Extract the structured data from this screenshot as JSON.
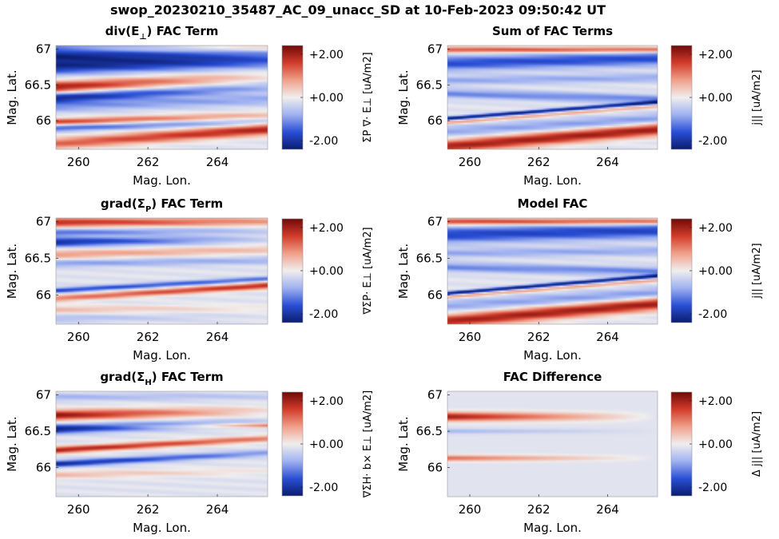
{
  "figure": {
    "title": "swop_20230210_35487_AC_09_unacc_SD at 10-Feb-2023 09:50:42 UT"
  },
  "colormap": {
    "name": "seismic-like diverging (blue-white-red)",
    "stops": [
      "#0b1c6e",
      "#2a4fd6",
      "#9fb1f0",
      "#f0eeee",
      "#f0a08a",
      "#d23b2b",
      "#6e0a08"
    ]
  },
  "chart_data": [
    {
      "id": "div_e",
      "type": "heatmap",
      "title": "div(E⊥) FAC Term",
      "title_parts": {
        "pre": "div(E",
        "sub": "⊥",
        "post": ") FAC Term"
      },
      "xlabel": "Mag. Lon.",
      "ylabel": "Mag. Lat.",
      "xlim": [
        259.35,
        265.45
      ],
      "ylim": [
        65.6,
        67.05
      ],
      "xticks": [
        "260",
        "262",
        "264"
      ],
      "yticks": [
        "67",
        "66.5",
        "66"
      ],
      "colorbar": {
        "ticks": [
          "+2.00",
          "+0.00",
          "-2.00"
        ],
        "range": [
          -2.4,
          2.4
        ],
        "label": "ΣP ∇· E⊥ [uA/m2]"
      },
      "bands": [
        {
          "lat0": 66.93,
          "lat1": 66.9,
          "w": 0.14,
          "v0": -2.2,
          "v1": -0.9
        },
        {
          "lat0": 66.74,
          "lat1": 66.82,
          "w": 0.1,
          "v0": -1.6,
          "v1": -0.7
        },
        {
          "lat0": 66.47,
          "lat1": 66.62,
          "w": 0.08,
          "v0": 2.2,
          "v1": 0.3
        },
        {
          "lat0": 66.32,
          "lat1": 66.46,
          "w": 0.07,
          "v0": -2.0,
          "v1": -0.6
        },
        {
          "lat0": 66.2,
          "lat1": 66.3,
          "w": 0.08,
          "v0": -0.9,
          "v1": -0.7
        },
        {
          "lat0": 65.98,
          "lat1": 66.08,
          "w": 0.05,
          "v0": 1.8,
          "v1": 0.6
        },
        {
          "lat0": 65.9,
          "lat1": 65.98,
          "w": 0.05,
          "v0": -1.4,
          "v1": -0.5
        },
        {
          "lat0": 65.68,
          "lat1": 65.88,
          "w": 0.08,
          "v0": 1.4,
          "v1": 2.1
        },
        {
          "lat0": 66.98,
          "lat1": 67.02,
          "w": 0.05,
          "v0": 0.6,
          "v1": 0.8
        }
      ]
    },
    {
      "id": "sum",
      "type": "heatmap",
      "title": "Sum of FAC Terms",
      "xlabel": "Mag. Lon.",
      "ylabel": "Mag. Lat.",
      "xlim": [
        259.35,
        265.45
      ],
      "ylim": [
        65.6,
        67.05
      ],
      "xticks": [
        "260",
        "262",
        "264"
      ],
      "yticks": [
        "67",
        "66.5",
        "66"
      ],
      "colorbar": {
        "ticks": [
          "+2.00",
          "+0.00",
          "-2.00"
        ],
        "range": [
          -2.4,
          2.4
        ],
        "label": "j|| [uA/m2]"
      },
      "bands": [
        {
          "lat0": 66.99,
          "lat1": 66.99,
          "w": 0.04,
          "v0": 1.6,
          "v1": 1.6
        },
        {
          "lat0": 66.8,
          "lat1": 66.87,
          "w": 0.1,
          "v0": -1.5,
          "v1": -1.5
        },
        {
          "lat0": 66.56,
          "lat1": 66.6,
          "w": 0.06,
          "v0": -0.7,
          "v1": -0.7
        },
        {
          "lat0": 66.38,
          "lat1": 66.3,
          "w": 0.06,
          "v0": -1.0,
          "v1": -1.0
        },
        {
          "lat0": 66.03,
          "lat1": 66.26,
          "w": 0.025,
          "v0": -2.3,
          "v1": -2.1
        },
        {
          "lat0": 65.97,
          "lat1": 66.2,
          "w": 0.025,
          "v0": 1.0,
          "v1": 0.8
        },
        {
          "lat0": 65.85,
          "lat1": 66.02,
          "w": 0.08,
          "v0": -0.7,
          "v1": -0.9
        },
        {
          "lat0": 65.64,
          "lat1": 65.88,
          "w": 0.09,
          "v0": 2.1,
          "v1": 2.2
        }
      ]
    },
    {
      "id": "grad_p",
      "type": "heatmap",
      "title": "grad(ΣP) FAC Term",
      "title_parts": {
        "pre": "grad(Σ",
        "sub": "P",
        "post": ") FAC Term"
      },
      "xlabel": "Mag. Lon.",
      "ylabel": "Mag. Lat.",
      "xlim": [
        259.35,
        265.45
      ],
      "ylim": [
        65.6,
        67.05
      ],
      "xticks": [
        "260",
        "262",
        "264"
      ],
      "yticks": [
        "67",
        "66.5",
        "66"
      ],
      "colorbar": {
        "ticks": [
          "+2.00",
          "+0.00",
          "-2.00"
        ],
        "range": [
          -2.4,
          2.4
        ],
        "label": "∇ΣP· E⊥ [uA/m2]"
      },
      "bands": [
        {
          "lat0": 66.99,
          "lat1": 67.0,
          "w": 0.06,
          "v0": 2.0,
          "v1": 1.0
        },
        {
          "lat0": 66.85,
          "lat1": 66.88,
          "w": 0.05,
          "v0": -1.2,
          "v1": -0.3
        },
        {
          "lat0": 66.72,
          "lat1": 66.76,
          "w": 0.06,
          "v0": -2.0,
          "v1": -0.2
        },
        {
          "lat0": 66.55,
          "lat1": 66.62,
          "w": 0.06,
          "v0": 1.0,
          "v1": 0.6
        },
        {
          "lat0": 66.43,
          "lat1": 66.47,
          "w": 0.05,
          "v0": -0.8,
          "v1": -0.6
        },
        {
          "lat0": 66.06,
          "lat1": 66.22,
          "w": 0.035,
          "v0": -1.6,
          "v1": -1.2
        },
        {
          "lat0": 65.95,
          "lat1": 66.13,
          "w": 0.045,
          "v0": 1.2,
          "v1": 2.0
        },
        {
          "lat0": 65.8,
          "lat1": 65.82,
          "w": 0.05,
          "v0": 0.7,
          "v1": 0.2
        },
        {
          "lat0": 65.68,
          "lat1": 65.7,
          "w": 0.05,
          "v0": -0.5,
          "v1": 0.0
        }
      ]
    },
    {
      "id": "model",
      "type": "heatmap",
      "title": "Model FAC",
      "xlabel": "Mag. Lon.",
      "ylabel": "Mag. Lat.",
      "xlim": [
        259.35,
        265.45
      ],
      "ylim": [
        65.6,
        67.05
      ],
      "xticks": [
        "260",
        "262",
        "264"
      ],
      "yticks": [
        "67",
        "66.5",
        "66"
      ],
      "colorbar": {
        "ticks": [
          "+2.00",
          "+0.00",
          "-2.00"
        ],
        "range": [
          -2.4,
          2.4
        ],
        "label": "j|| [uA/m2]"
      },
      "bands": [
        {
          "lat0": 67.0,
          "lat1": 67.0,
          "w": 0.045,
          "v0": 1.8,
          "v1": 1.7
        },
        {
          "lat0": 66.82,
          "lat1": 66.88,
          "w": 0.11,
          "v0": -1.6,
          "v1": -1.6
        },
        {
          "lat0": 66.57,
          "lat1": 66.6,
          "w": 0.06,
          "v0": -0.7,
          "v1": -0.7
        },
        {
          "lat0": 66.38,
          "lat1": 66.32,
          "w": 0.06,
          "v0": -1.0,
          "v1": -1.0
        },
        {
          "lat0": 66.02,
          "lat1": 66.26,
          "w": 0.025,
          "v0": -2.3,
          "v1": -2.2
        },
        {
          "lat0": 65.97,
          "lat1": 66.2,
          "w": 0.025,
          "v0": 1.0,
          "v1": 0.9
        },
        {
          "lat0": 65.85,
          "lat1": 66.02,
          "w": 0.08,
          "v0": -0.7,
          "v1": -0.9
        },
        {
          "lat0": 65.64,
          "lat1": 65.88,
          "w": 0.09,
          "v0": 2.1,
          "v1": 2.2
        }
      ]
    },
    {
      "id": "grad_h",
      "type": "heatmap",
      "title": "grad(ΣH) FAC Term",
      "title_parts": {
        "pre": "grad(Σ",
        "sub": "H",
        "post": ") FAC Term"
      },
      "xlabel": "Mag. Lon.",
      "ylabel": "Mag. Lat.",
      "xlim": [
        259.35,
        265.45
      ],
      "ylim": [
        65.6,
        67.05
      ],
      "xticks": [
        "260",
        "262",
        "264"
      ],
      "yticks": [
        "67",
        "66.5",
        "66"
      ],
      "colorbar": {
        "ticks": [
          "+2.00",
          "+0.00",
          "-2.00"
        ],
        "range": [
          -2.4,
          2.4
        ],
        "label": "∇ΣH· b× E⊥ [uA/m2]"
      },
      "bands": [
        {
          "lat0": 66.97,
          "lat1": 66.98,
          "w": 0.05,
          "v0": -0.6,
          "v1": -0.3
        },
        {
          "lat0": 66.72,
          "lat1": 66.78,
          "w": 0.07,
          "v0": 2.3,
          "v1": 0.3
        },
        {
          "lat0": 66.53,
          "lat1": 66.62,
          "w": 0.06,
          "v0": -2.2,
          "v1": -0.3
        },
        {
          "lat0": 66.24,
          "lat1": 66.4,
          "w": 0.045,
          "v0": 2.2,
          "v1": 1.2
        },
        {
          "lat0": 66.05,
          "lat1": 66.2,
          "w": 0.045,
          "v0": -2.0,
          "v1": -0.8
        },
        {
          "lat0": 65.9,
          "lat1": 65.95,
          "w": 0.05,
          "v0": 0.7,
          "v1": 0.2
        },
        {
          "lat0": 66.56,
          "lat1": 66.58,
          "w": 0.03,
          "v0": 0.0,
          "v1": 1.4
        }
      ]
    },
    {
      "id": "diff",
      "type": "heatmap",
      "title": "FAC Difference",
      "xlabel": "Mag. Lon.",
      "ylabel": "Mag. Lat.",
      "xlim": [
        259.35,
        265.45
      ],
      "ylim": [
        65.6,
        67.05
      ],
      "xticks": [
        "260",
        "262",
        "264"
      ],
      "yticks": [
        "67",
        "66.5",
        "66"
      ],
      "colorbar": {
        "ticks": [
          "+2.00",
          "+0.00",
          "-2.00"
        ],
        "range": [
          -2.4,
          2.4
        ],
        "label": "Δ j|| [uA/m2]"
      },
      "bands": [
        {
          "lat0": 66.7,
          "lat1": 66.7,
          "w": 0.06,
          "v0": 2.2,
          "v1": 0.0
        },
        {
          "lat0": 66.13,
          "lat1": 66.13,
          "w": 0.04,
          "v0": 1.4,
          "v1": 0.0
        },
        {
          "lat0": 66.5,
          "lat1": 66.5,
          "w": 0.03,
          "v0": -0.6,
          "v1": 0.0
        }
      ]
    }
  ]
}
